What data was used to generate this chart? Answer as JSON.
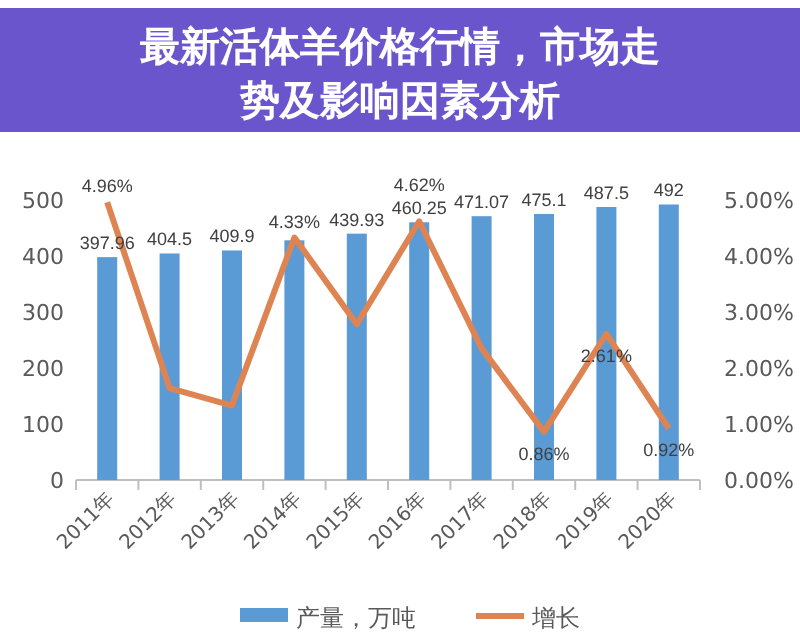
{
  "chart_data": {
    "type": "bar",
    "title": "最新活体羊价格行情，市场走势及影响因素分析",
    "categories": [
      "2011年",
      "2012年",
      "2013年",
      "2014年",
      "2015年",
      "2016年",
      "2017年",
      "2018年",
      "2019年",
      "2020年"
    ],
    "series": [
      {
        "name": "产量，万吨",
        "color": "#5b9bd5",
        "values": [
          397.96,
          404.5,
          409.9,
          428,
          439.93,
          460.25,
          471.07,
          475.1,
          487.5,
          492
        ],
        "value_labels": [
          "397.96",
          "404.5",
          "409.9",
          null,
          "439.93",
          "460.25",
          "471.07",
          "475.1",
          "487.5",
          "492"
        ]
      },
      {
        "name": "增长",
        "type": "line",
        "axis": "y2",
        "color": "#dd8452",
        "values": [
          4.96,
          1.64,
          1.33,
          4.33,
          2.78,
          4.62,
          2.35,
          0.86,
          2.61,
          0.92
        ],
        "value_labels": [
          "4.96%",
          null,
          null,
          "4.33%",
          null,
          "4.62%",
          null,
          "0.86%",
          "2.61%",
          "0.92%"
        ]
      }
    ],
    "ylim": [
      0,
      500
    ],
    "yticks": [
      0,
      100,
      200,
      300,
      400,
      500
    ],
    "y2lim": [
      0,
      5
    ],
    "y2ticks": [
      {
        "value": 0,
        "label": "0.00%"
      },
      {
        "value": 1,
        "label": "1.00%"
      },
      {
        "value": 2,
        "label": "2.00%"
      },
      {
        "value": 3,
        "label": "3.00%"
      },
      {
        "value": 4,
        "label": "4.00%"
      },
      {
        "value": 5,
        "label": "5.00%"
      }
    ],
    "legend": "bottom",
    "grid": false
  }
}
